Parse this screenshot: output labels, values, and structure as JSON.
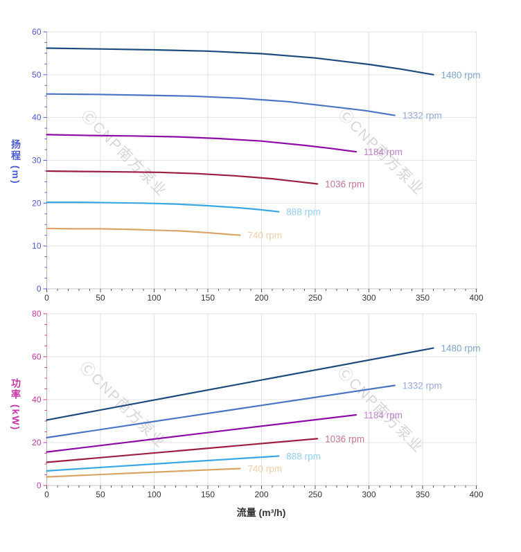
{
  "watermark": {
    "text": "ⒸCNP南方泵业",
    "color": "#d2d2d2"
  },
  "xlabel": "流量 (m³/h)",
  "chart_data": [
    {
      "type": "line",
      "title": "",
      "xlabel": "",
      "ylabel": "扬程 (m)",
      "xlim": [
        0,
        400
      ],
      "ylim": [
        0,
        60
      ],
      "x_major": 50,
      "x_minor": 10,
      "y_major": 10,
      "y_minor": 2.5,
      "grid": true,
      "axis_color": "#4a5ad0",
      "x_tick_color": "#555555",
      "x_tick_labels": [
        0,
        50,
        100,
        150,
        200,
        250,
        300,
        350,
        400
      ],
      "y_tick_labels": [
        0,
        10,
        20,
        30,
        40,
        50,
        60
      ],
      "legend_position": "curve-end-labels",
      "series": [
        {
          "name": "1480 rpm",
          "color": "#1b4a7d",
          "label_color": "#7ea7c9",
          "points": [
            [
              0,
              56.2
            ],
            [
              50,
              56.0
            ],
            [
              100,
              55.8
            ],
            [
              150,
              55.5
            ],
            [
              200,
              54.9
            ],
            [
              250,
              53.9
            ],
            [
              300,
              52.4
            ],
            [
              330,
              51.3
            ],
            [
              360,
              50.0
            ]
          ]
        },
        {
          "name": "1332 rpm",
          "color": "#4a74c4",
          "label_color": "#95abdc",
          "points": [
            [
              0,
              45.5
            ],
            [
              45,
              45.4
            ],
            [
              90,
              45.2
            ],
            [
              135,
              45.0
            ],
            [
              180,
              44.5
            ],
            [
              225,
              43.7
            ],
            [
              270,
              42.4
            ],
            [
              297,
              41.6
            ],
            [
              324,
              40.5
            ]
          ]
        },
        {
          "name": "1184 rpm",
          "color": "#8c0ba6",
          "label_color": "#bf83cd",
          "points": [
            [
              0,
              36.0
            ],
            [
              40,
              35.8
            ],
            [
              80,
              35.7
            ],
            [
              120,
              35.5
            ],
            [
              160,
              35.1
            ],
            [
              200,
              34.5
            ],
            [
              240,
              33.5
            ],
            [
              264,
              32.8
            ],
            [
              288,
              32.0
            ]
          ]
        },
        {
          "name": "1036 rpm",
          "color": "#9c1d40",
          "label_color": "#c4768f",
          "points": [
            [
              0,
              27.5
            ],
            [
              35,
              27.4
            ],
            [
              70,
              27.3
            ],
            [
              105,
              27.2
            ],
            [
              140,
              26.9
            ],
            [
              175,
              26.4
            ],
            [
              210,
              25.7
            ],
            [
              231,
              25.1
            ],
            [
              252,
              24.5
            ]
          ]
        },
        {
          "name": "888 rpm",
          "color": "#39a7e2",
          "label_color": "#90cef2",
          "points": [
            [
              0,
              20.2
            ],
            [
              30,
              20.2
            ],
            [
              60,
              20.1
            ],
            [
              90,
              20.0
            ],
            [
              120,
              19.8
            ],
            [
              150,
              19.4
            ],
            [
              180,
              18.9
            ],
            [
              198,
              18.5
            ],
            [
              216,
              18.0
            ]
          ]
        },
        {
          "name": "740 rpm",
          "color": "#d9a566",
          "label_color": "#e9d0a8",
          "points": [
            [
              0,
              14.1
            ],
            [
              25,
              14.0
            ],
            [
              50,
              14.0
            ],
            [
              75,
              13.9
            ],
            [
              100,
              13.7
            ],
            [
              125,
              13.5
            ],
            [
              150,
              13.1
            ],
            [
              165,
              12.8
            ],
            [
              180,
              12.5
            ]
          ]
        }
      ]
    },
    {
      "type": "line",
      "title": "",
      "xlabel": "流量 (m³/h)",
      "ylabel": "功率 (kW)",
      "xlim": [
        0,
        400
      ],
      "ylim": [
        0,
        80
      ],
      "x_major": 50,
      "x_minor": 10,
      "y_major": 20,
      "y_minor": 5,
      "grid": true,
      "axis_color": "#ca35a5",
      "x_tick_color": "#555555",
      "x_tick_labels": [
        0,
        50,
        100,
        150,
        200,
        250,
        300,
        350,
        400
      ],
      "y_tick_labels": [
        0,
        20,
        40,
        60,
        80
      ],
      "legend_position": "curve-end-labels",
      "series": [
        {
          "name": "1480 rpm",
          "color": "#1b4a7d",
          "label_color": "#7ea7c9",
          "points": [
            [
              0,
              30.5
            ],
            [
              180,
              47.3
            ],
            [
              360,
              64.0
            ]
          ]
        },
        {
          "name": "1332 rpm",
          "color": "#4a74c4",
          "label_color": "#95abdc",
          "points": [
            [
              0,
              22.3
            ],
            [
              162,
              34.5
            ],
            [
              324,
              46.6
            ]
          ]
        },
        {
          "name": "1184 rpm",
          "color": "#8c0ba6",
          "label_color": "#bf83cd",
          "points": [
            [
              0,
              15.6
            ],
            [
              144,
              24.3
            ],
            [
              288,
              32.9
            ]
          ]
        },
        {
          "name": "1036 rpm",
          "color": "#9c1d40",
          "label_color": "#c4768f",
          "points": [
            [
              0,
              10.8
            ],
            [
              126,
              16.3
            ],
            [
              252,
              21.8
            ]
          ]
        },
        {
          "name": "888 rpm",
          "color": "#39a7e2",
          "label_color": "#90cef2",
          "points": [
            [
              0,
              6.8
            ],
            [
              108,
              10.3
            ],
            [
              216,
              13.7
            ]
          ]
        },
        {
          "name": "740 rpm",
          "color": "#d9a566",
          "label_color": "#e9d0a8",
          "points": [
            [
              0,
              4.0
            ],
            [
              90,
              6.0
            ],
            [
              180,
              7.9
            ]
          ]
        }
      ]
    }
  ]
}
